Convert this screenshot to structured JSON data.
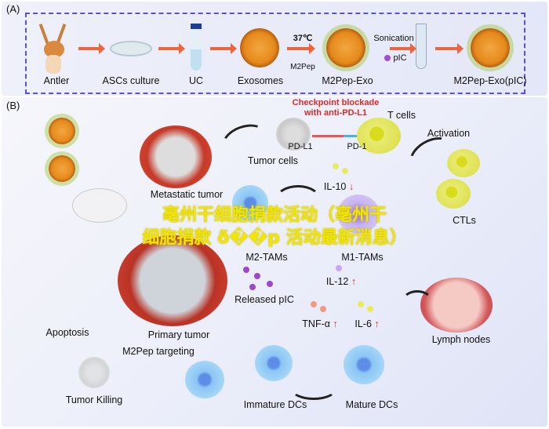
{
  "panel_a": {
    "label": "(A)",
    "steps": [
      "Antler",
      "ASCs culture",
      "UC",
      "Exosomes",
      "M2Pep-Exo",
      "M2Pep-Exo(pIC)"
    ],
    "temperature": "37℃",
    "peptide": "M2Pep",
    "sonication": "Sonication",
    "pic": "pIC"
  },
  "panel_b": {
    "label": "(B)",
    "checkpoint": [
      "Checkpoint blockade",
      "with anti-PD-L1"
    ],
    "t_cells": "T cells",
    "tumor_cells": "Tumor cells",
    "pd_l1": "PD-L1",
    "pd_1": "PD-1",
    "activation": "Activation",
    "il10": "IL-10",
    "metastatic_tumor": "Metastatic tumor",
    "m2_tams": "M2-TAMs",
    "m1_tams": "M1-TAMs",
    "ctls": "CTLs",
    "il12": "IL-12",
    "released_pic": "Released pIC",
    "tnf": "TNF-α",
    "il6": "IL-6",
    "lymph_nodes": "Lymph nodes",
    "apoptosis": "Apoptosis",
    "primary_tumor": "Primary tumor",
    "m2pep_targeting": "M2Pep targeting",
    "tumor_killing": "Tumor Killing",
    "immature_dcs": "Immature DCs",
    "mature_dcs": "Mature DCs",
    "down_arrow": "↓",
    "up_arrow": "↑"
  },
  "watermark": [
    "亳州干细胞捐款活动（亳州干",
    "细胞捐款 ð��p 活动最新消息）"
  ],
  "colors": {
    "dashed_border": "#5b4fe0",
    "process_arrow": "#f0643c",
    "highlight_text": "#e02828",
    "watermark": "#f2e600"
  }
}
